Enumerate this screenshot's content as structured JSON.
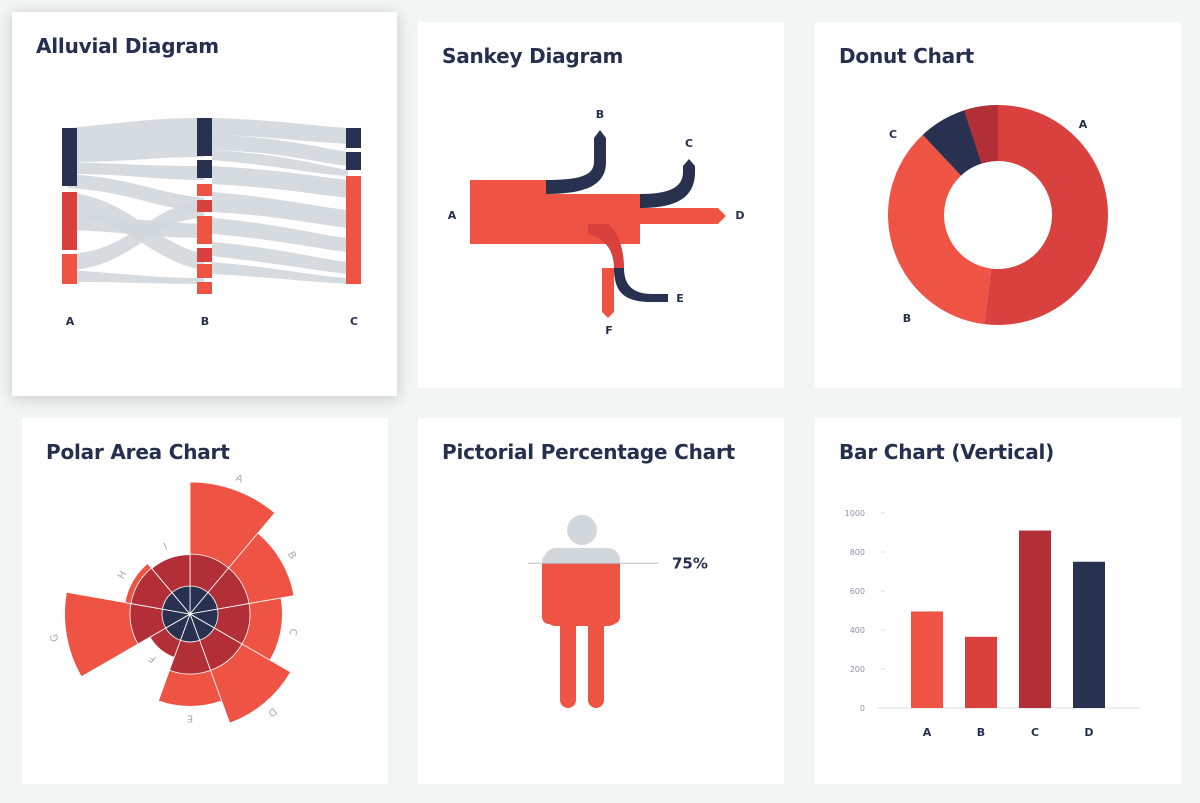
{
  "colors": {
    "navy": "#28314f",
    "red": "#ef5343",
    "red_mid": "#d9413e",
    "red_dark": "#b22f37",
    "gray": "#d2d7dc",
    "axis": "#d8dce2"
  },
  "cards": {
    "alluvial": {
      "title": "Alluvial Diagram"
    },
    "sankey": {
      "title": "Sankey Diagram"
    },
    "donut": {
      "title": "Donut Chart"
    },
    "polar": {
      "title": "Polar Area Chart"
    },
    "pictorial": {
      "title": "Pictorial Percentage Chart"
    },
    "bar": {
      "title": "Bar Chart (Vertical)"
    }
  },
  "chart_data": [
    {
      "type": "alluvial",
      "title": "Alluvial Diagram",
      "axes": [
        "A",
        "B",
        "C"
      ]
    },
    {
      "type": "sankey",
      "title": "Sankey Diagram",
      "nodes": [
        "A",
        "B",
        "C",
        "D",
        "E",
        "F"
      ]
    },
    {
      "type": "pie",
      "title": "Donut Chart",
      "categories": [
        "A",
        "B",
        "C"
      ],
      "values": [
        52,
        36,
        12
      ],
      "colors": [
        "#d9413e",
        "#ef5343",
        "#28314f"
      ]
    },
    {
      "type": "polar_area",
      "title": "Polar Area Chart",
      "categories": [
        "A",
        "B",
        "C",
        "D",
        "E",
        "F",
        "G",
        "H",
        "I"
      ],
      "values": [
        100,
        80,
        70,
        88,
        70,
        35,
        95,
        50,
        45
      ]
    },
    {
      "type": "pictorial_percentage",
      "title": "Pictorial Percentage Chart",
      "value": 75,
      "label": "75%"
    },
    {
      "type": "bar",
      "title": "Bar Chart (Vertical)",
      "categories": [
        "A",
        "B",
        "C",
        "D"
      ],
      "values": [
        495,
        365,
        910,
        750
      ],
      "colors": [
        "#ef5343",
        "#d9413e",
        "#b22f37",
        "#28314f"
      ],
      "ylim": [
        0,
        1000
      ],
      "yticks": [
        0,
        200,
        400,
        600,
        800,
        1000
      ],
      "grid": false,
      "xlabel": "",
      "ylabel": ""
    }
  ]
}
